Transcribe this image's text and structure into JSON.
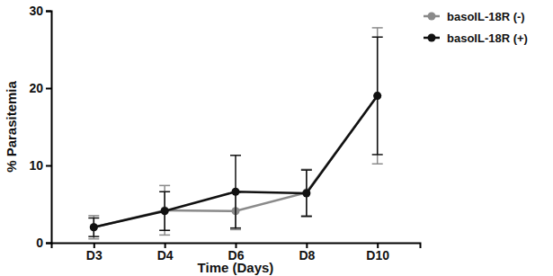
{
  "chart_data": {
    "type": "line",
    "x_label": "Time (Days)",
    "y_label": "% Parasitemia",
    "categories": [
      "D3",
      "D4",
      "D6",
      "D8",
      "D10"
    ],
    "ylim": [
      0,
      30
    ],
    "yticks": [
      0,
      10,
      20,
      30
    ],
    "legend": "right",
    "series": [
      {
        "name": "basoIL-18R (-)",
        "color": "#8a8a8a",
        "marker": "circle",
        "line_style": "solid",
        "values": [
          2.0,
          4.2,
          4.1,
          6.5,
          19.0
        ],
        "errors": [
          1.5,
          3.2,
          2.4,
          3.0,
          8.8
        ]
      },
      {
        "name": "basoIL-18R (+)",
        "color": "#111111",
        "marker": "circle",
        "line_style": "solid",
        "values": [
          2.0,
          4.1,
          6.6,
          6.4,
          19.0
        ],
        "errors": [
          1.2,
          2.5,
          4.7,
          3.0,
          7.6
        ]
      }
    ]
  }
}
